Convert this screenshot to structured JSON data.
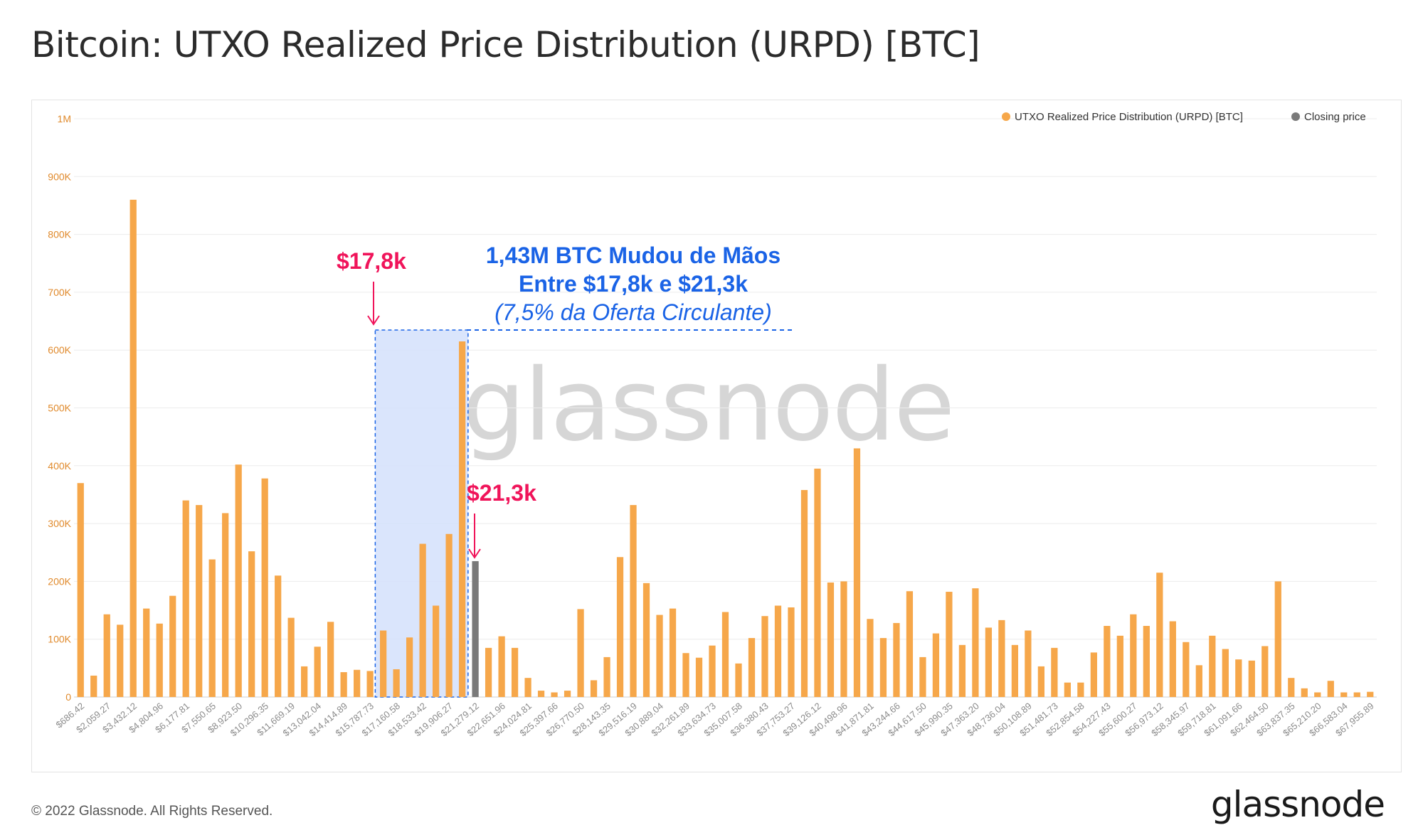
{
  "title": "Bitcoin: UTXO Realized Price Distribution (URPD) [BTC]",
  "footer": {
    "copyright": "© 2022 Glassnode. All Rights Reserved.",
    "brand": "glassnode"
  },
  "watermark": "glassnode",
  "colors": {
    "urpd": "#f6a74a",
    "closing": "#7a7a7a",
    "highlight": "#d3e1fb",
    "annotation_red": "#f0145a",
    "annotation_blue": "#1a63e6",
    "axis_tick": "#e08a2c"
  },
  "annotations": {
    "low_label": "$17,8k",
    "high_label": "$21,3k",
    "box_line1": "1,43M BTC Mudou de Mãos",
    "box_line2": "Entre $17,8k e $21,3k",
    "box_line3": "(7,5% da Oferta Circulante)"
  },
  "chart_data": {
    "type": "bar",
    "title": "Bitcoin: UTXO Realized Price Distribution (URPD) [BTC]",
    "legend": [
      "UTXO Realized Price Distribution (URPD) [BTC]",
      "Closing price"
    ],
    "legend_position": "top-right",
    "grid": true,
    "ylim": [
      0,
      1000000
    ],
    "y_ticks": [
      0,
      100000,
      200000,
      300000,
      400000,
      500000,
      600000,
      700000,
      800000,
      900000,
      1000000
    ],
    "y_tick_labels": [
      "0",
      "100K",
      "200K",
      "300K",
      "400K",
      "500K",
      "600K",
      "700K",
      "800K",
      "900K",
      "1M"
    ],
    "x_tick_labels": [
      "$686.42",
      "$2,059.27",
      "$3,432.12",
      "$4,804.96",
      "$6,177.81",
      "$7,550.65",
      "$8,923.50",
      "$10,296.35",
      "$11,669.19",
      "$13,042.04",
      "$14,414.89",
      "$15,787.73",
      "$17,160.58",
      "$18,533.42",
      "$19,906.27",
      "$21,279.12",
      "$22,651.96",
      "$24,024.81",
      "$25,397.66",
      "$26,770.50",
      "$28,143.35",
      "$29,516.19",
      "$30,889.04",
      "$32,261.89",
      "$33,634.73",
      "$35,007.58",
      "$36,380.43",
      "$37,753.27",
      "$39,126.12",
      "$40,498.96",
      "$41,871.81",
      "$43,244.66",
      "$44,617.50",
      "$45,990.35",
      "$47,363.20",
      "$48,736.04",
      "$50,108.89",
      "$51,481.73",
      "$52,854.58",
      "$54,227.43",
      "$55,600.27",
      "$56,973.12",
      "$58,345.97",
      "$59,718.81",
      "$61,091.66",
      "$62,464.50",
      "$63,837.35",
      "$65,210.20",
      "$66,583.04",
      "$67,955.89"
    ],
    "values": [
      370000,
      37000,
      143000,
      125000,
      860000,
      153000,
      127000,
      175000,
      340000,
      332000,
      238000,
      318000,
      402000,
      252000,
      378000,
      210000,
      137000,
      53000,
      87000,
      130000,
      43000,
      47000,
      45000,
      115000,
      48000,
      103000,
      265000,
      158000,
      282000,
      615000,
      235000,
      85000,
      105000,
      85000,
      33000,
      11000,
      8000,
      11000,
      152000,
      29000,
      69000,
      242000,
      332000,
      197000,
      142000,
      153000,
      76000,
      68000,
      89000,
      147000,
      58000,
      102000,
      140000,
      158000,
      155000,
      358000,
      395000,
      198000,
      200000,
      430000,
      135000,
      102000,
      128000,
      183000,
      69000,
      110000,
      182000,
      90000,
      188000,
      120000,
      133000,
      90000,
      115000,
      53000,
      85000,
      25000,
      25000,
      77000,
      123000,
      106000,
      143000,
      123000,
      215000,
      131000,
      95000,
      55000,
      106000,
      83000,
      65000,
      63000,
      88000,
      200000,
      33000,
      15000,
      8000,
      28000,
      8000,
      8000,
      9000
    ],
    "closing_price_index": 30,
    "highlight_range": [
      17800,
      21300
    ]
  }
}
